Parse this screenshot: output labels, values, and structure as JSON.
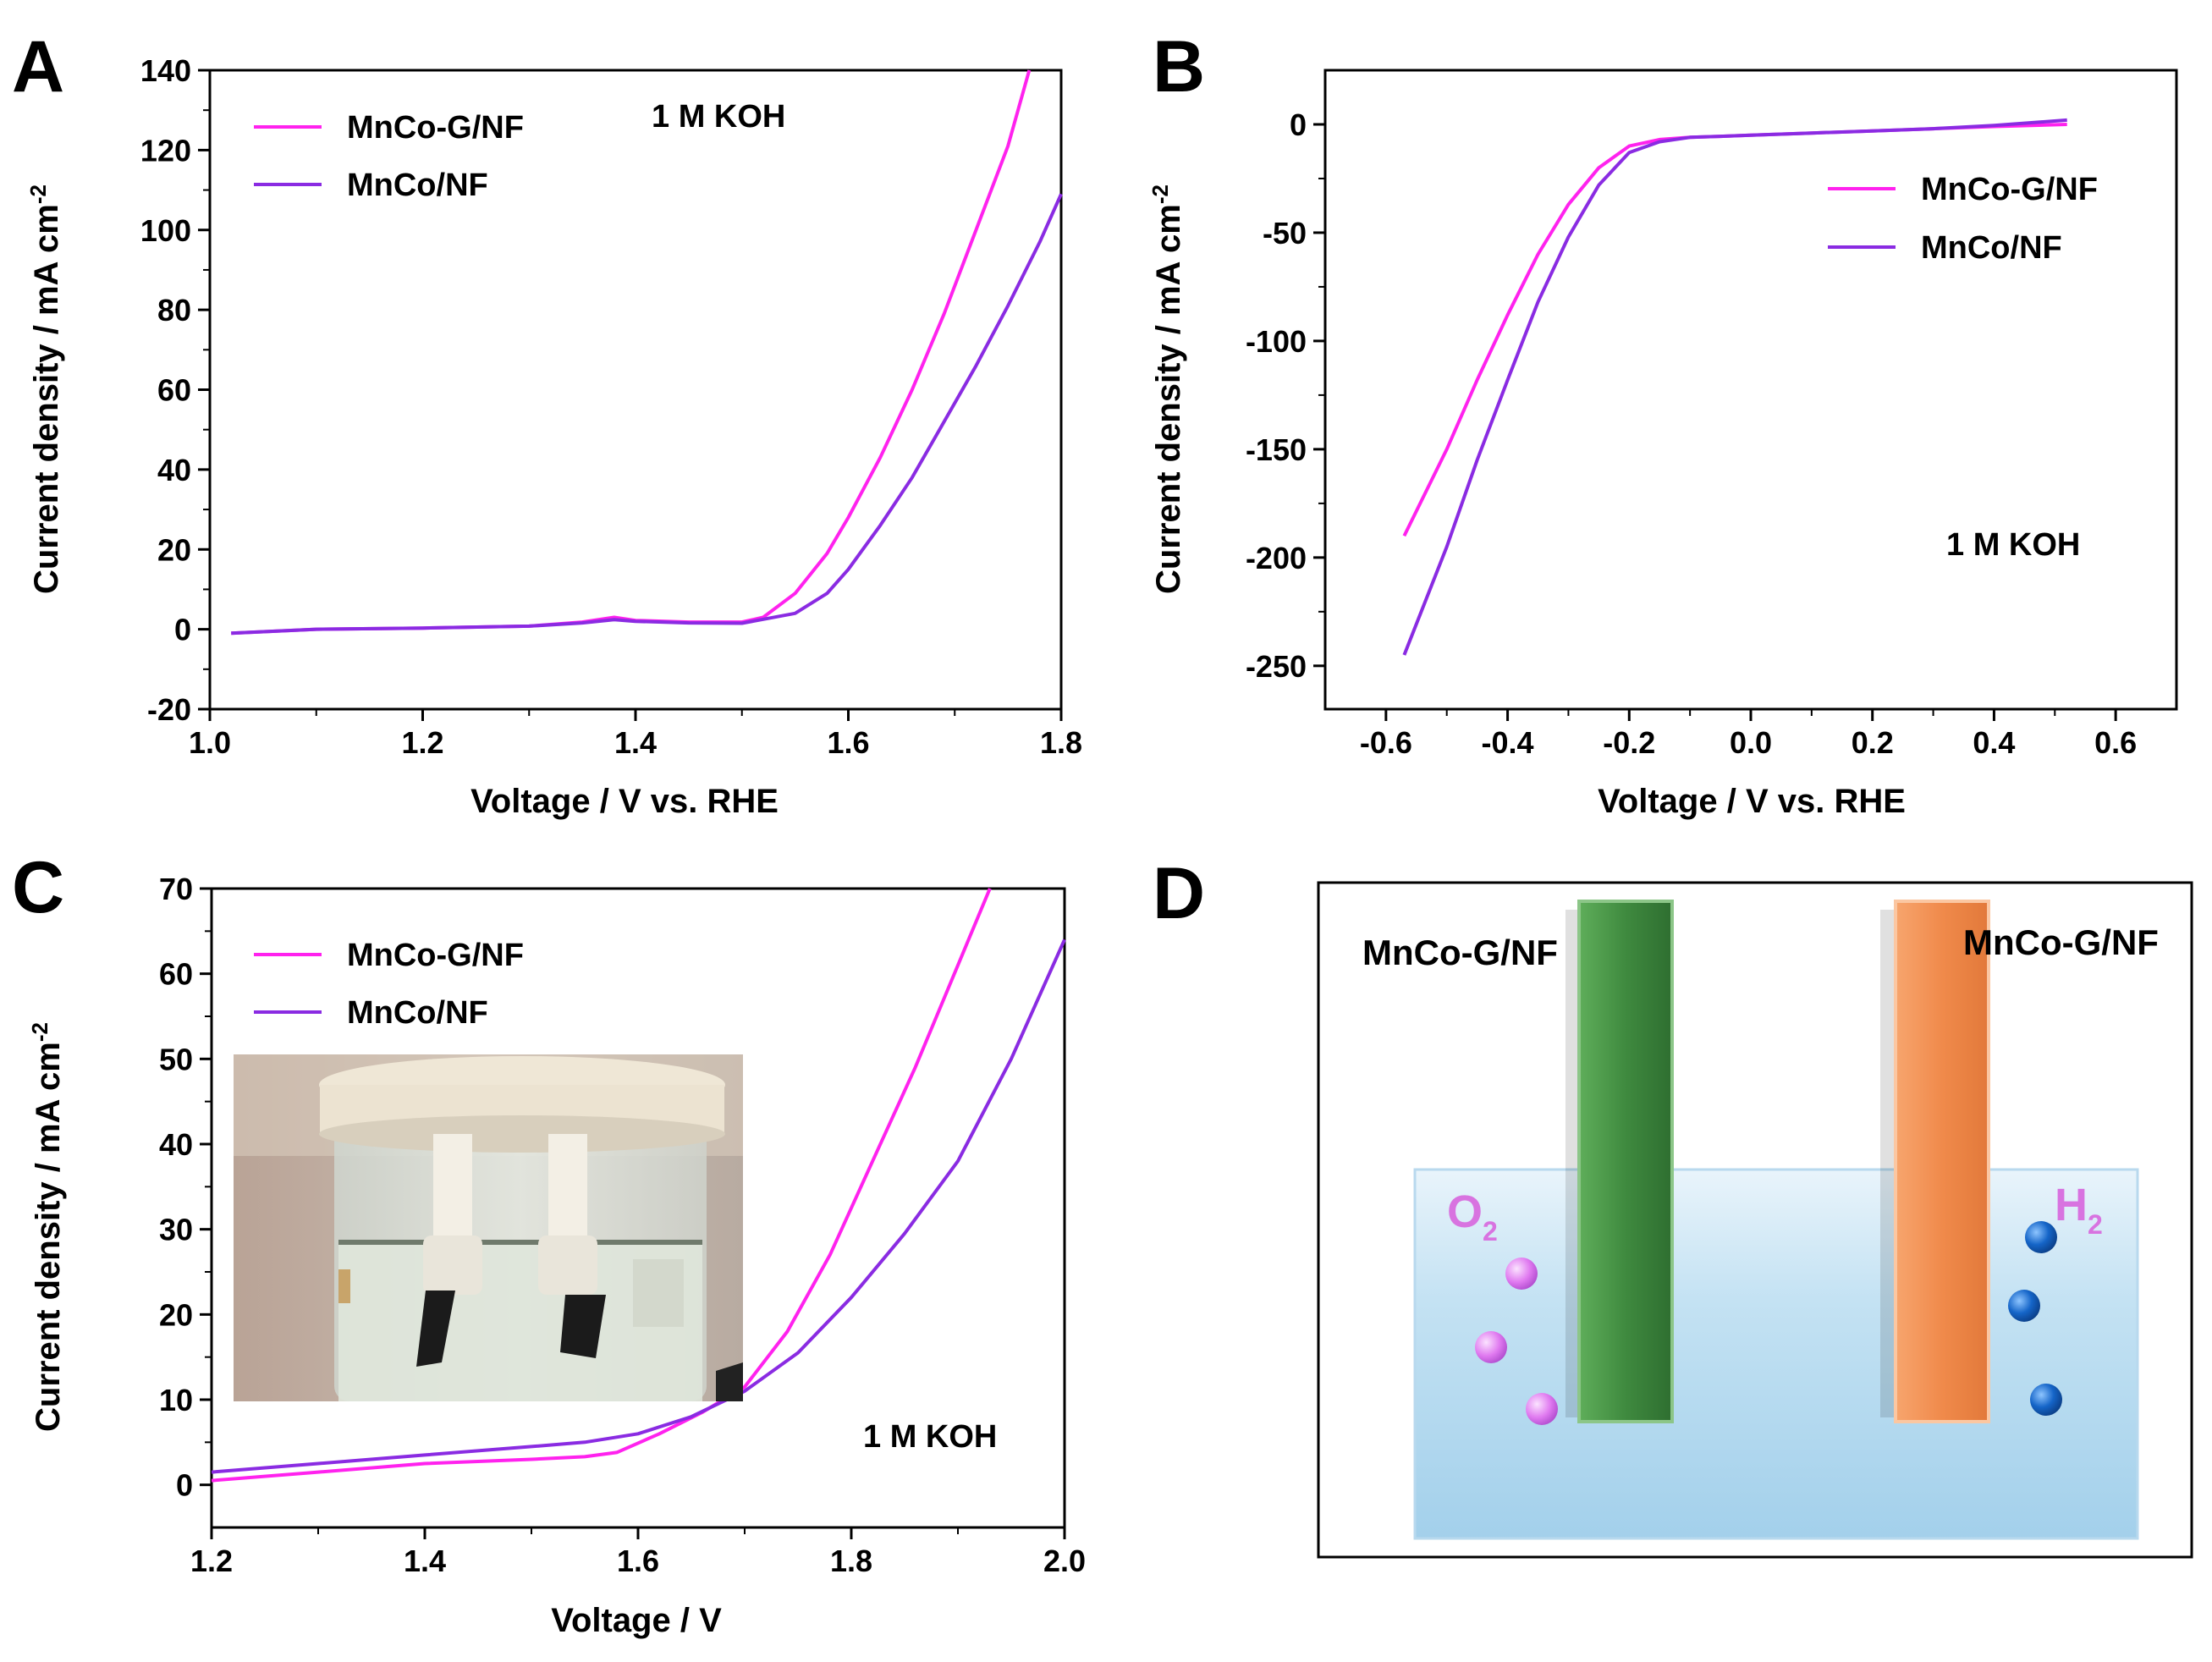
{
  "panels": {
    "A": "A",
    "B": "B",
    "C": "C",
    "D": "D"
  },
  "colors": {
    "mnco_g_nf": "#ff22ee",
    "mnco_nf": "#8a2be2",
    "anode": "#3f8a3f",
    "cathode": "#f08a4b",
    "o2_bubble": "#e07af0",
    "h2_bubble": "#1565c8",
    "electrolyte": "#a8d3ec"
  },
  "legend_labels": {
    "mnco_g": "MnCo-G/NF",
    "mnco": "MnCo/NF"
  },
  "annotation": "1 M KOH",
  "chart_data": [
    {
      "panel": "A",
      "type": "line",
      "xlabel": "Voltage / V vs. RHE",
      "ylabel": "Current density / mA cm",
      "ylabel_sup": "-2",
      "xlim": [
        1.0,
        1.8
      ],
      "ylim": [
        -20,
        140
      ],
      "xticks": [
        1.0,
        1.2,
        1.4,
        1.6,
        1.8
      ],
      "yticks": [
        -20,
        0,
        20,
        40,
        60,
        80,
        100,
        120,
        140
      ],
      "xtick_labels": [
        "1.0",
        "1.2",
        "1.4",
        "1.6",
        "1.8"
      ],
      "ytick_labels": [
        "-20",
        "0",
        "20",
        "40",
        "60",
        "80",
        "100",
        "120",
        "140"
      ],
      "annotation": "1 M KOH",
      "legend_position": "top-left",
      "series": [
        {
          "name": "MnCo-G/NF",
          "x": [
            1.02,
            1.1,
            1.2,
            1.3,
            1.35,
            1.38,
            1.4,
            1.45,
            1.5,
            1.52,
            1.55,
            1.58,
            1.6,
            1.63,
            1.66,
            1.69,
            1.72,
            1.75,
            1.77
          ],
          "y": [
            -1,
            0,
            0.3,
            0.8,
            1.8,
            3,
            2.2,
            1.8,
            1.8,
            3,
            9,
            19,
            28,
            43,
            60,
            79,
            100,
            121,
            140
          ]
        },
        {
          "name": "MnCo/NF",
          "x": [
            1.02,
            1.1,
            1.2,
            1.3,
            1.35,
            1.38,
            1.4,
            1.45,
            1.5,
            1.55,
            1.58,
            1.6,
            1.63,
            1.66,
            1.69,
            1.72,
            1.75,
            1.78,
            1.8
          ],
          "y": [
            -1,
            0,
            0.3,
            0.8,
            1.6,
            2.4,
            2,
            1.6,
            1.5,
            4,
            9,
            15,
            26,
            38,
            52,
            66,
            81,
            97,
            109
          ]
        }
      ]
    },
    {
      "panel": "B",
      "type": "line",
      "xlabel": "Voltage / V vs. RHE",
      "ylabel": "Current density / mA cm",
      "ylabel_sup": "-2",
      "xlim": [
        -0.7,
        0.7
      ],
      "ylim": [
        -270,
        25
      ],
      "xticks": [
        -0.6,
        -0.4,
        -0.2,
        0.0,
        0.2,
        0.4,
        0.6
      ],
      "yticks": [
        -250,
        -200,
        -150,
        -100,
        -50,
        0
      ],
      "xtick_labels": [
        "-0.6",
        "-0.4",
        "-0.2",
        "0.0",
        "0.2",
        "0.4",
        "0.6"
      ],
      "ytick_labels": [
        "-250",
        "-200",
        "-150",
        "-100",
        "-50",
        "0"
      ],
      "annotation": "1 M KOH",
      "legend_position": "top-right",
      "series": [
        {
          "name": "MnCo-G/NF",
          "x": [
            -0.57,
            -0.5,
            -0.45,
            -0.4,
            -0.35,
            -0.3,
            -0.25,
            -0.2,
            -0.15,
            -0.1,
            -0.05,
            0.0,
            0.1,
            0.2,
            0.3,
            0.4,
            0.52
          ],
          "y": [
            -190,
            -150,
            -118,
            -88,
            -60,
            -37,
            -20,
            -10,
            -7,
            -6,
            -5.5,
            -5,
            -4,
            -3,
            -2,
            -1,
            0
          ]
        },
        {
          "name": "MnCo/NF",
          "x": [
            -0.57,
            -0.5,
            -0.45,
            -0.4,
            -0.35,
            -0.3,
            -0.25,
            -0.2,
            -0.15,
            -0.1,
            -0.05,
            0.0,
            0.1,
            0.2,
            0.3,
            0.4,
            0.52
          ],
          "y": [
            -245,
            -195,
            -155,
            -118,
            -82,
            -52,
            -28,
            -13,
            -8,
            -6,
            -5.5,
            -5,
            -4,
            -3,
            -2,
            -0.5,
            2
          ]
        }
      ]
    },
    {
      "panel": "C",
      "type": "line",
      "xlabel": "Voltage / V",
      "ylabel": "Current density / mA cm",
      "ylabel_sup": "-2",
      "xlim": [
        1.2,
        2.0
      ],
      "ylim": [
        -5,
        70
      ],
      "xticks": [
        1.2,
        1.4,
        1.6,
        1.8,
        2.0
      ],
      "yticks": [
        0,
        10,
        20,
        30,
        40,
        50,
        60,
        70
      ],
      "xtick_labels": [
        "1.2",
        "1.4",
        "1.6",
        "1.8",
        "2.0"
      ],
      "ytick_labels": [
        "0",
        "10",
        "20",
        "30",
        "40",
        "50",
        "60",
        "70"
      ],
      "annotation": "1 M KOH",
      "legend_position": "top-left",
      "series": [
        {
          "name": "MnCo-G/NF",
          "x": [
            1.2,
            1.3,
            1.4,
            1.5,
            1.55,
            1.58,
            1.62,
            1.66,
            1.7,
            1.74,
            1.78,
            1.82,
            1.86,
            1.9,
            1.93
          ],
          "y": [
            0.5,
            1.5,
            2.5,
            3,
            3.3,
            3.8,
            6,
            8.5,
            11.5,
            18,
            27,
            38,
            49,
            61,
            70
          ]
        },
        {
          "name": "MnCo/NF",
          "x": [
            1.2,
            1.3,
            1.4,
            1.5,
            1.55,
            1.6,
            1.65,
            1.7,
            1.75,
            1.8,
            1.85,
            1.9,
            1.95,
            2.0
          ],
          "y": [
            1.5,
            2.5,
            3.5,
            4.5,
            5,
            6,
            8,
            11,
            15.5,
            22,
            29.5,
            38,
            50,
            64
          ]
        }
      ]
    }
  ],
  "diagram": {
    "anode_label": "MnCo-G/NF",
    "cathode_label": "MnCo-G/NF",
    "o2_label": "O",
    "o2_sub": "2",
    "h2_label": "H",
    "h2_sub": "2"
  }
}
